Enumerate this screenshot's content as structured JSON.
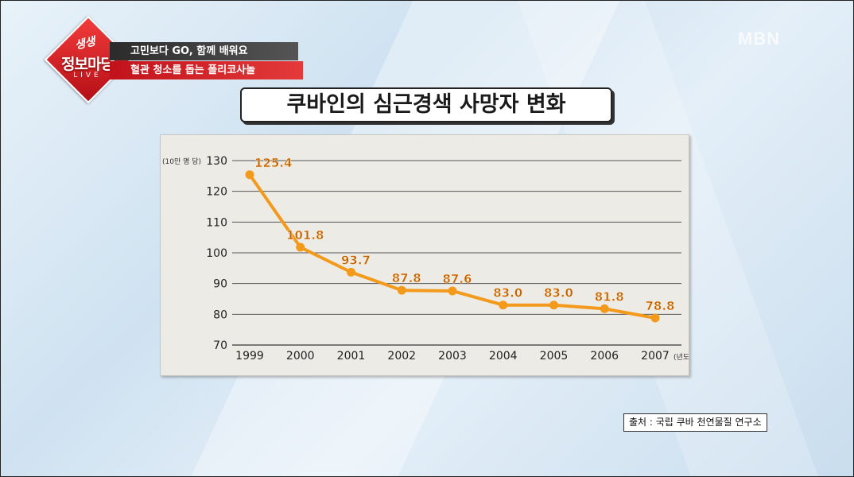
{
  "show": {
    "logo_top": "생생",
    "logo_main": "정보마당",
    "logo_live": "LIVE",
    "tag1": "고민보다 GO, 함께 배워요",
    "tag2": "혈관 청소를 돕는 폴리코사놀",
    "broadcaster": "MBN"
  },
  "colors": {
    "series": "#f39a1c",
    "label": "#c06000",
    "grid": "#555555",
    "brand_red": "#d01a22"
  },
  "chart_data": {
    "type": "line",
    "title": "쿠바인의 심근경색 사망자 변화",
    "y_unit_label": "(10만 명 당)",
    "x_unit_label": "(년도)",
    "categories": [
      "1999",
      "2000",
      "2001",
      "2002",
      "2003",
      "2004",
      "2005",
      "2006",
      "2007"
    ],
    "values": [
      125.4,
      101.8,
      93.7,
      87.8,
      87.6,
      83.0,
      83.0,
      81.8,
      78.8
    ],
    "value_labels": [
      "125.4",
      "101.8",
      "93.7",
      "87.8",
      "87.6",
      "83.0",
      "83.0",
      "81.8",
      "78.8"
    ],
    "yticks": [
      70,
      80,
      90,
      100,
      110,
      120,
      130
    ],
    "ylim": [
      70,
      130
    ],
    "grid": true
  },
  "source_text": "출처 : 국립 쿠바 천연물질 연구소"
}
